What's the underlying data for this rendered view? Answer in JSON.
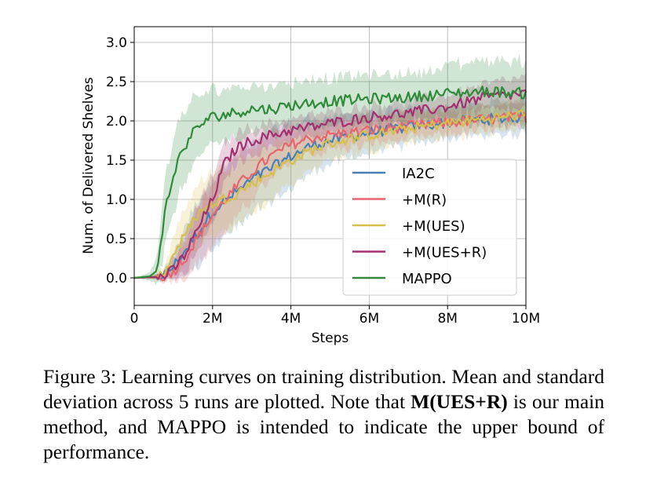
{
  "chart_data": {
    "type": "line",
    "title": "",
    "xlabel": "Steps",
    "ylabel": "Num. of Delivered Shelves",
    "xlim": [
      0,
      10000000
    ],
    "ylim": [
      -0.35,
      3.2
    ],
    "x_ticks": [
      {
        "value": 0,
        "label": "0"
      },
      {
        "value": 2000000,
        "label": "2M"
      },
      {
        "value": 4000000,
        "label": "4M"
      },
      {
        "value": 6000000,
        "label": "6M"
      },
      {
        "value": 8000000,
        "label": "8M"
      },
      {
        "value": 10000000,
        "label": "10M"
      }
    ],
    "y_ticks": [
      {
        "value": 0.0,
        "label": "0.0"
      },
      {
        "value": 0.5,
        "label": "0.5"
      },
      {
        "value": 1.0,
        "label": "1.0"
      },
      {
        "value": 1.5,
        "label": "1.5"
      },
      {
        "value": 2.0,
        "label": "2.0"
      },
      {
        "value": 2.5,
        "label": "2.5"
      },
      {
        "value": 3.0,
        "label": "3.0"
      }
    ],
    "grid": true,
    "legend_position": "lower-right",
    "series": [
      {
        "name": "IA2C",
        "color": "#4a7fb5",
        "x": [
          0,
          500000,
          800000,
          1000000,
          1300000,
          1600000,
          2000000,
          2500000,
          3000000,
          3500000,
          4000000,
          4500000,
          5000000,
          6000000,
          7000000,
          8000000,
          9000000,
          10000000
        ],
        "mean": [
          0,
          0.01,
          0.05,
          0.15,
          0.35,
          0.55,
          0.85,
          1.05,
          1.25,
          1.4,
          1.55,
          1.68,
          1.75,
          1.85,
          1.92,
          1.98,
          2.02,
          2.05
        ],
        "std": [
          0,
          0.02,
          0.06,
          0.15,
          0.3,
          0.4,
          0.45,
          0.45,
          0.45,
          0.45,
          0.4,
          0.35,
          0.3,
          0.25,
          0.22,
          0.2,
          0.2,
          0.2
        ]
      },
      {
        "name": "+M(R)",
        "color": "#e8656f",
        "x": [
          0,
          500000,
          800000,
          1000000,
          1300000,
          1600000,
          2000000,
          2500000,
          3000000,
          3500000,
          4000000,
          4500000,
          5000000,
          6000000,
          7000000,
          8000000,
          9000000,
          10000000
        ],
        "mean": [
          0,
          0.01,
          0.03,
          0.08,
          0.25,
          0.5,
          0.8,
          1.1,
          1.35,
          1.55,
          1.7,
          1.78,
          1.82,
          1.88,
          1.93,
          1.98,
          2.02,
          2.05
        ],
        "std": [
          0,
          0.02,
          0.05,
          0.1,
          0.25,
          0.35,
          0.4,
          0.4,
          0.35,
          0.3,
          0.25,
          0.2,
          0.2,
          0.18,
          0.16,
          0.15,
          0.15,
          0.15
        ]
      },
      {
        "name": "+M(UES)",
        "color": "#d4c04a",
        "x": [
          0,
          500000,
          800000,
          1000000,
          1300000,
          1600000,
          2000000,
          2500000,
          3000000,
          3500000,
          4000000,
          4500000,
          5000000,
          6000000,
          7000000,
          8000000,
          9000000,
          10000000
        ],
        "mean": [
          0,
          0.01,
          0.08,
          0.3,
          0.55,
          0.8,
          0.95,
          1.05,
          1.2,
          1.35,
          1.5,
          1.62,
          1.72,
          1.82,
          1.9,
          1.97,
          2.03,
          2.08
        ],
        "std": [
          0,
          0.03,
          0.1,
          0.25,
          0.35,
          0.4,
          0.4,
          0.4,
          0.4,
          0.35,
          0.3,
          0.25,
          0.22,
          0.2,
          0.18,
          0.18,
          0.18,
          0.18
        ]
      },
      {
        "name": "+M(UES+R)",
        "color": "#a2306e",
        "x": [
          0,
          500000,
          800000,
          1000000,
          1300000,
          1600000,
          2000000,
          2300000,
          2600000,
          3000000,
          3500000,
          4000000,
          4500000,
          5000000,
          6000000,
          7000000,
          8000000,
          9000000,
          10000000
        ],
        "mean": [
          0,
          0.01,
          0.03,
          0.1,
          0.3,
          0.6,
          1.0,
          1.45,
          1.65,
          1.75,
          1.82,
          1.88,
          1.92,
          1.97,
          2.05,
          2.1,
          2.18,
          2.3,
          2.35
        ],
        "std": [
          0,
          0.02,
          0.05,
          0.12,
          0.25,
          0.3,
          0.3,
          0.25,
          0.2,
          0.18,
          0.16,
          0.15,
          0.15,
          0.15,
          0.15,
          0.15,
          0.15,
          0.18,
          0.2
        ]
      },
      {
        "name": "MAPPO",
        "color": "#2f8a3a",
        "x": [
          0,
          400000,
          600000,
          700000,
          800000,
          1000000,
          1200000,
          1500000,
          1800000,
          2000000,
          2500000,
          3000000,
          3500000,
          4000000,
          5000000,
          6000000,
          7000000,
          8000000,
          9000000,
          10000000
        ],
        "mean": [
          0,
          0.02,
          0.1,
          0.5,
          0.9,
          1.3,
          1.6,
          1.85,
          2.0,
          2.05,
          2.1,
          2.15,
          2.15,
          2.2,
          2.25,
          2.28,
          2.3,
          2.35,
          2.38,
          2.35
        ],
        "std": [
          0,
          0.05,
          0.2,
          0.35,
          0.45,
          0.5,
          0.45,
          0.4,
          0.35,
          0.35,
          0.33,
          0.3,
          0.3,
          0.3,
          0.3,
          0.3,
          0.3,
          0.35,
          0.4,
          0.4
        ]
      }
    ]
  },
  "caption": {
    "label": "Figure 3:",
    "part1": " Learning curves on training distribution. Mean and standard deviation across 5 runs are plotted. Note that ",
    "bold": "M(UES+R)",
    "part2": " is our main method, and MAPPO is intended to indicate the upper bound of performance."
  }
}
